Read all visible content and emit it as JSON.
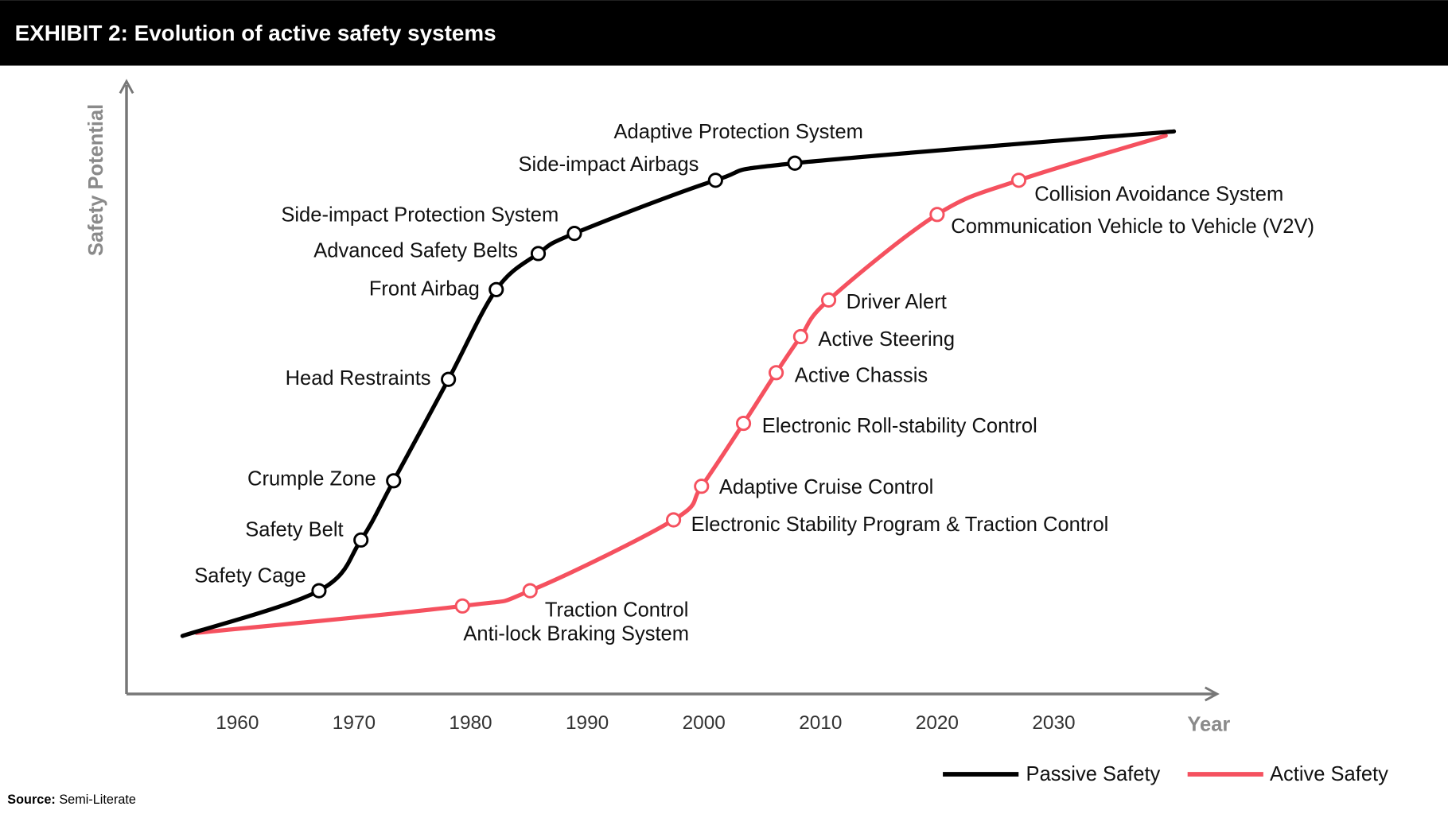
{
  "header": {
    "title": "EXHIBIT 2: Evolution of active safety systems",
    "background": "#000000"
  },
  "source": {
    "label": "Source:",
    "text": "Semi-Literate"
  },
  "chart_data": {
    "type": "line",
    "title": "EXHIBIT 2: Evolution of active safety systems",
    "xlabel": "Year",
    "ylabel": "Safety Potential",
    "xticks": [
      "1960",
      "1970",
      "1980",
      "1990",
      "2000",
      "2010",
      "2020",
      "2030"
    ],
    "xlim": [
      1950.5,
      2043.5
    ],
    "ylim": [
      0,
      100
    ],
    "grid": false,
    "legend_placement": "bottom-right",
    "series": [
      {
        "name": "Passive Safety",
        "color": "#000000",
        "points": [
          {
            "year": 1955.3,
            "value": 9.5
          },
          {
            "year": 1967.0,
            "value": 16.9,
            "label": "Safety Cage"
          },
          {
            "year": 1970.6,
            "value": 25.2,
            "label": "Safety Belt"
          },
          {
            "year": 1973.4,
            "value": 34.9,
            "label": "Crumple Zone"
          },
          {
            "year": 1978.1,
            "value": 51.5,
            "label": "Head Restraints"
          },
          {
            "year": 1982.2,
            "value": 66.2,
            "label": "Front Airbag"
          },
          {
            "year": 1985.8,
            "value": 72.1,
            "label": "Advanced Safety Belts"
          },
          {
            "year": 1988.9,
            "value": 75.4,
            "label": "Side-impact Protection System"
          },
          {
            "year": 2001.0,
            "value": 84.1,
            "label": "Side-impact Airbags"
          },
          {
            "year": 2007.8,
            "value": 86.9,
            "label": "Adaptive Protection System"
          },
          {
            "year": 2040.3,
            "value": 92.1
          }
        ]
      },
      {
        "name": "Active Safety",
        "color": "#f5515f",
        "points": [
          {
            "year": 1956.5,
            "value": 10.0
          },
          {
            "year": 1979.3,
            "value": 14.4,
            "label": "Anti-lock Braking System"
          },
          {
            "year": 1985.1,
            "value": 16.9,
            "label": "Traction Control"
          },
          {
            "year": 1997.4,
            "value": 28.5,
            "label": "Electronic Stability Program & Traction Control"
          },
          {
            "year": 1999.8,
            "value": 34.0,
            "label": "Adaptive Cruise Control"
          },
          {
            "year": 2003.4,
            "value": 44.3,
            "label": "Electronic Roll-stability Control"
          },
          {
            "year": 2006.2,
            "value": 52.6,
            "label": "Active Chassis"
          },
          {
            "year": 2008.3,
            "value": 58.5,
            "label": "Active Steering"
          },
          {
            "year": 2010.7,
            "value": 64.5,
            "label": "Driver Alert"
          },
          {
            "year": 2020.0,
            "value": 78.5,
            "label": "Communication Vehicle to Vehicle (V2V)"
          },
          {
            "year": 2027.0,
            "value": 84.1,
            "label": "Collision Avoidance System"
          },
          {
            "year": 2039.6,
            "value": 91.4
          }
        ]
      }
    ]
  }
}
